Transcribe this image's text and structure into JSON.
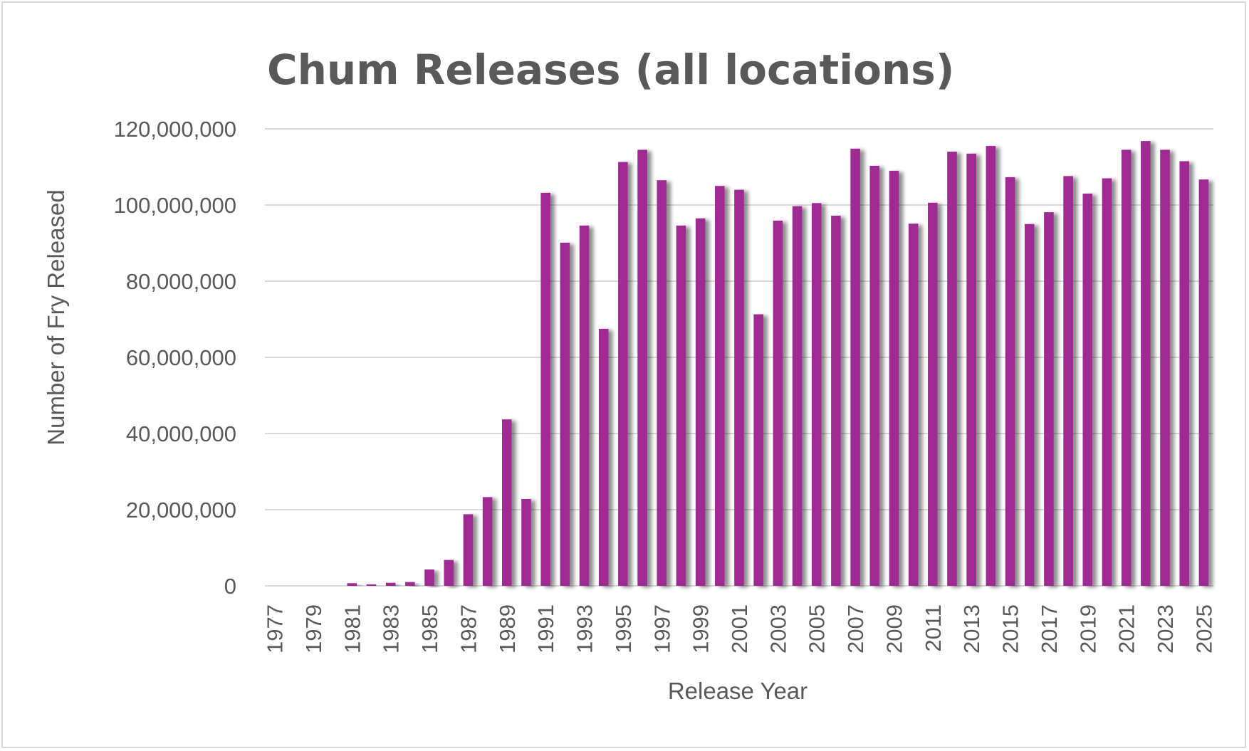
{
  "colors": {
    "bar": "#9e2a92",
    "grid": "#d9d9d9",
    "text": "#595959"
  },
  "chart_data": {
    "type": "bar",
    "title": "Chum Releases (all locations)",
    "xlabel": "Release Year",
    "ylabel": "Number of  Fry Released",
    "ylim": [
      0,
      120000000
    ],
    "yticks": [
      "0",
      "20,000,000",
      "40,000,000",
      "60,000,000",
      "80,000,000",
      "100,000,000",
      "120,000,000"
    ],
    "ytick_values": [
      0,
      20000000,
      40000000,
      60000000,
      80000000,
      100000000,
      120000000
    ],
    "grid": true,
    "legend": "none",
    "categories": [
      "1977",
      "1978",
      "1979",
      "1980",
      "1981",
      "1982",
      "1983",
      "1984",
      "1985",
      "1986",
      "1987",
      "1988",
      "1989",
      "1990",
      "1991",
      "1992",
      "1993",
      "1994",
      "1995",
      "1996",
      "1997",
      "1998",
      "1999",
      "2000",
      "2001",
      "2002",
      "2003",
      "2004",
      "2005",
      "2006",
      "2007",
      "2008",
      "2009",
      "2010",
      "2011",
      "2012",
      "2013",
      "2014",
      "2015",
      "2016",
      "2017",
      "2018",
      "2019",
      "2020",
      "2021",
      "2022",
      "2023",
      "2024",
      "2025"
    ],
    "xtick_labels": [
      "1977",
      "1979",
      "1981",
      "1983",
      "1985",
      "1987",
      "1989",
      "1991",
      "1993",
      "1995",
      "1997",
      "1999",
      "2001",
      "2003",
      "2005",
      "2007",
      "2009",
      "2011",
      "2013",
      "2015",
      "2017",
      "2019",
      "2021",
      "2023",
      "2025"
    ],
    "values": [
      0,
      0,
      0,
      0,
      700000,
      400000,
      800000,
      1000000,
      4300000,
      6800000,
      18800000,
      23300000,
      43700000,
      22800000,
      103200000,
      90100000,
      94600000,
      67500000,
      111300000,
      114500000,
      106500000,
      94600000,
      96500000,
      105000000,
      104000000,
      71300000,
      95900000,
      99700000,
      100500000,
      97200000,
      114800000,
      110300000,
      109000000,
      95100000,
      100600000,
      114000000,
      113500000,
      115500000,
      107300000,
      95000000,
      98100000,
      107600000,
      103000000,
      107000000,
      114500000,
      116800000,
      114500000,
      111500000,
      106700000
    ]
  }
}
